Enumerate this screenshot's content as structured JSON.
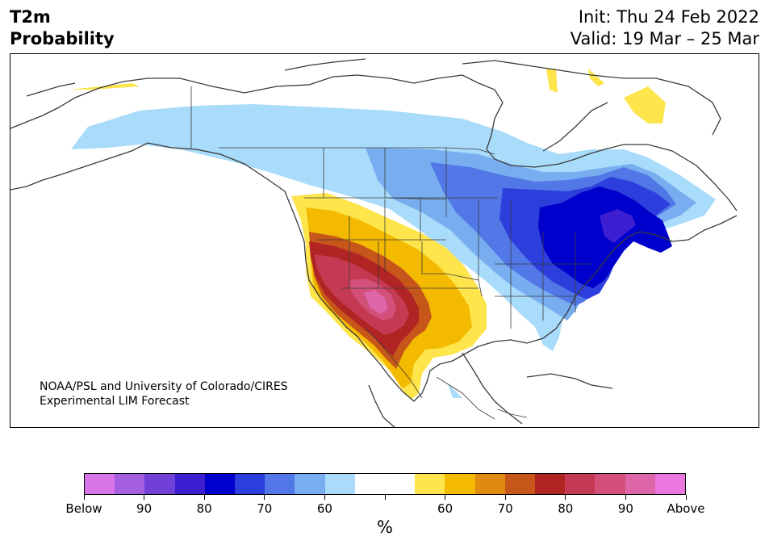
{
  "header": {
    "title_line1": "T2m",
    "title_line2": "Probability",
    "init": "Init: Thu 24 Feb 2022",
    "valid": "Valid: 19 Mar – 25 Mar"
  },
  "credit": {
    "line1": "NOAA/PSL and University of Colorado/CIRES",
    "line2": "Experimental LIM Forecast"
  },
  "colorbar": {
    "colors": [
      "#d675e8",
      "#a35fe0",
      "#7040d8",
      "#3e1ed1",
      "#0000cc",
      "#2c3edb",
      "#5178e6",
      "#78aef0",
      "#a9dbfb",
      "#ffffff",
      "#ffffff",
      "#fee54c",
      "#f3ba00",
      "#e08a0f",
      "#c6561a",
      "#b02424",
      "#c33a52",
      "#d2507a",
      "#dd66a8",
      "#ea77df"
    ],
    "tick_labels": [
      "Below",
      "90",
      "80",
      "70",
      "60",
      "",
      "60",
      "70",
      "80",
      "90",
      "Above"
    ],
    "unit_label": "%"
  },
  "map": {
    "region": "North America",
    "legend_colors": {
      "below_90": "#0000cc",
      "below_80": "#2c3edb",
      "below_70": "#5178e6",
      "below_60": "#78aef0",
      "below_55": "#a9dbfb",
      "above_55": "#fee54c",
      "above_60": "#f3ba00",
      "above_65": "#e08a0f",
      "above_70": "#c6561a",
      "above_75": "#b02424",
      "above_80": "#c33a52",
      "above_85": "#d2507a",
      "above_90": "#dd66a8"
    }
  }
}
